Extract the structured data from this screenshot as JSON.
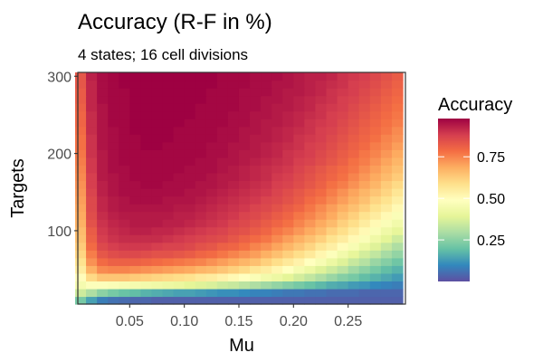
{
  "chart_data": {
    "type": "heatmap",
    "title": "Accuracy (R-F in %)",
    "subtitle": "4 states; 16 cell divisions",
    "xlabel": "Mu",
    "ylabel": "Targets",
    "x_ticks": [
      0.05,
      0.1,
      0.15,
      0.2,
      0.25
    ],
    "x_tick_labels": [
      "0.05",
      "0.10",
      "0.15",
      "0.20",
      "0.25"
    ],
    "y_ticks": [
      100,
      200,
      300
    ],
    "y_tick_labels": [
      "100",
      "200",
      "300"
    ],
    "xlim": [
      0.0025,
      0.3025
    ],
    "ylim": [
      5,
      305
    ],
    "grid": false,
    "legend": {
      "title": "Accuracy",
      "placement": "right",
      "range": [
        0.0,
        0.98
      ],
      "ticks": [
        0.25,
        0.5,
        0.75
      ],
      "tick_labels": [
        "0.25",
        "0.50",
        "0.75"
      ]
    },
    "colormap": [
      "#5e4fa2",
      "#3288bd",
      "#66c2a5",
      "#abdda4",
      "#e6f598",
      "#ffffbf",
      "#fee08b",
      "#fdae61",
      "#f46d43",
      "#d53e4f",
      "#9e0142"
    ],
    "x": [
      0.005,
      0.015,
      0.025,
      0.035,
      0.045,
      0.055,
      0.065,
      0.075,
      0.085,
      0.095,
      0.105,
      0.115,
      0.125,
      0.135,
      0.145,
      0.155,
      0.165,
      0.175,
      0.185,
      0.195,
      0.205,
      0.215,
      0.225,
      0.235,
      0.245,
      0.255,
      0.265,
      0.275,
      0.285,
      0.295
    ],
    "y": [
      10,
      20,
      30,
      40,
      50,
      60,
      70,
      80,
      90,
      100,
      110,
      120,
      130,
      140,
      150,
      160,
      170,
      180,
      190,
      200,
      210,
      220,
      230,
      240,
      250,
      260,
      270,
      280,
      290,
      300
    ],
    "values": [
      [
        0.22,
        0.14,
        0.08,
        0.06,
        0.05,
        0.04,
        0.04,
        0.03,
        0.03,
        0.03,
        0.03,
        0.03,
        0.03,
        0.03,
        0.03,
        0.03,
        0.03,
        0.03,
        0.03,
        0.03,
        0.03,
        0.03,
        0.03,
        0.03,
        0.03,
        0.03,
        0.03,
        0.03,
        0.03,
        0.03
      ],
      [
        0.35,
        0.3,
        0.25,
        0.22,
        0.2,
        0.19,
        0.17,
        0.16,
        0.15,
        0.14,
        0.14,
        0.13,
        0.12,
        0.11,
        0.11,
        0.1,
        0.09,
        0.09,
        0.08,
        0.07,
        0.07,
        0.06,
        0.06,
        0.05,
        0.05,
        0.05,
        0.04,
        0.04,
        0.04,
        0.04
      ],
      [
        0.45,
        0.48,
        0.48,
        0.47,
        0.46,
        0.45,
        0.44,
        0.43,
        0.42,
        0.41,
        0.39,
        0.38,
        0.37,
        0.35,
        0.34,
        0.32,
        0.3,
        0.28,
        0.26,
        0.24,
        0.22,
        0.2,
        0.18,
        0.16,
        0.15,
        0.13,
        0.12,
        0.1,
        0.09,
        0.08
      ],
      [
        0.5,
        0.6,
        0.64,
        0.64,
        0.64,
        0.63,
        0.62,
        0.61,
        0.6,
        0.59,
        0.58,
        0.56,
        0.55,
        0.53,
        0.51,
        0.49,
        0.47,
        0.44,
        0.42,
        0.39,
        0.36,
        0.33,
        0.3,
        0.27,
        0.24,
        0.22,
        0.19,
        0.17,
        0.15,
        0.13
      ],
      [
        0.55,
        0.68,
        0.74,
        0.75,
        0.75,
        0.74,
        0.73,
        0.72,
        0.71,
        0.7,
        0.69,
        0.67,
        0.66,
        0.64,
        0.62,
        0.6,
        0.57,
        0.55,
        0.52,
        0.49,
        0.45,
        0.42,
        0.38,
        0.35,
        0.32,
        0.28,
        0.25,
        0.22,
        0.19,
        0.17
      ],
      [
        0.58,
        0.73,
        0.79,
        0.81,
        0.81,
        0.81,
        0.8,
        0.79,
        0.78,
        0.77,
        0.76,
        0.75,
        0.73,
        0.71,
        0.69,
        0.67,
        0.65,
        0.62,
        0.59,
        0.56,
        0.53,
        0.49,
        0.46,
        0.42,
        0.38,
        0.34,
        0.31,
        0.27,
        0.24,
        0.21
      ],
      [
        0.61,
        0.76,
        0.83,
        0.85,
        0.86,
        0.86,
        0.85,
        0.84,
        0.84,
        0.83,
        0.82,
        0.8,
        0.79,
        0.77,
        0.75,
        0.73,
        0.71,
        0.68,
        0.65,
        0.62,
        0.59,
        0.56,
        0.52,
        0.48,
        0.44,
        0.4,
        0.36,
        0.33,
        0.29,
        0.26
      ],
      [
        0.63,
        0.79,
        0.86,
        0.88,
        0.89,
        0.89,
        0.89,
        0.88,
        0.87,
        0.87,
        0.86,
        0.84,
        0.83,
        0.81,
        0.8,
        0.78,
        0.75,
        0.73,
        0.7,
        0.67,
        0.64,
        0.61,
        0.57,
        0.54,
        0.5,
        0.46,
        0.42,
        0.38,
        0.34,
        0.3
      ],
      [
        0.65,
        0.81,
        0.88,
        0.9,
        0.91,
        0.91,
        0.91,
        0.91,
        0.9,
        0.89,
        0.88,
        0.87,
        0.86,
        0.85,
        0.83,
        0.81,
        0.79,
        0.77,
        0.74,
        0.71,
        0.68,
        0.65,
        0.62,
        0.58,
        0.55,
        0.51,
        0.47,
        0.43,
        0.39,
        0.35
      ],
      [
        0.66,
        0.82,
        0.89,
        0.91,
        0.92,
        0.93,
        0.93,
        0.92,
        0.92,
        0.91,
        0.9,
        0.89,
        0.88,
        0.87,
        0.85,
        0.84,
        0.82,
        0.8,
        0.77,
        0.75,
        0.72,
        0.69,
        0.66,
        0.62,
        0.59,
        0.55,
        0.51,
        0.47,
        0.43,
        0.4
      ],
      [
        0.68,
        0.84,
        0.9,
        0.92,
        0.93,
        0.94,
        0.94,
        0.94,
        0.93,
        0.93,
        0.92,
        0.91,
        0.9,
        0.89,
        0.87,
        0.86,
        0.84,
        0.82,
        0.8,
        0.78,
        0.75,
        0.72,
        0.69,
        0.66,
        0.62,
        0.59,
        0.55,
        0.51,
        0.47,
        0.44
      ],
      [
        0.69,
        0.85,
        0.91,
        0.93,
        0.94,
        0.94,
        0.94,
        0.94,
        0.94,
        0.93,
        0.93,
        0.92,
        0.91,
        0.9,
        0.89,
        0.87,
        0.86,
        0.84,
        0.82,
        0.8,
        0.77,
        0.75,
        0.72,
        0.69,
        0.65,
        0.62,
        0.58,
        0.55,
        0.51,
        0.47
      ],
      [
        0.7,
        0.86,
        0.92,
        0.94,
        0.95,
        0.95,
        0.95,
        0.95,
        0.95,
        0.94,
        0.94,
        0.93,
        0.92,
        0.91,
        0.9,
        0.89,
        0.87,
        0.86,
        0.84,
        0.82,
        0.8,
        0.77,
        0.74,
        0.71,
        0.68,
        0.65,
        0.62,
        0.58,
        0.55,
        0.51
      ],
      [
        0.71,
        0.86,
        0.92,
        0.94,
        0.95,
        0.96,
        0.96,
        0.96,
        0.95,
        0.95,
        0.95,
        0.94,
        0.93,
        0.92,
        0.91,
        0.9,
        0.89,
        0.87,
        0.86,
        0.84,
        0.82,
        0.79,
        0.77,
        0.74,
        0.71,
        0.68,
        0.65,
        0.61,
        0.58,
        0.54
      ],
      [
        0.72,
        0.87,
        0.93,
        0.95,
        0.96,
        0.96,
        0.96,
        0.96,
        0.96,
        0.96,
        0.95,
        0.95,
        0.94,
        0.93,
        0.92,
        0.91,
        0.9,
        0.89,
        0.87,
        0.85,
        0.83,
        0.81,
        0.79,
        0.76,
        0.73,
        0.7,
        0.67,
        0.64,
        0.61,
        0.57
      ],
      [
        0.73,
        0.88,
        0.93,
        0.95,
        0.96,
        0.96,
        0.97,
        0.97,
        0.96,
        0.96,
        0.96,
        0.95,
        0.95,
        0.94,
        0.93,
        0.92,
        0.91,
        0.9,
        0.88,
        0.87,
        0.85,
        0.83,
        0.81,
        0.78,
        0.76,
        0.73,
        0.7,
        0.67,
        0.63,
        0.6
      ],
      [
        0.74,
        0.88,
        0.94,
        0.95,
        0.96,
        0.97,
        0.97,
        0.97,
        0.97,
        0.96,
        0.96,
        0.96,
        0.95,
        0.94,
        0.94,
        0.93,
        0.92,
        0.91,
        0.89,
        0.88,
        0.86,
        0.84,
        0.82,
        0.8,
        0.78,
        0.75,
        0.72,
        0.69,
        0.66,
        0.63
      ],
      [
        0.75,
        0.89,
        0.94,
        0.96,
        0.96,
        0.97,
        0.97,
        0.97,
        0.97,
        0.97,
        0.96,
        0.96,
        0.96,
        0.95,
        0.94,
        0.93,
        0.92,
        0.91,
        0.9,
        0.89,
        0.87,
        0.85,
        0.83,
        0.81,
        0.79,
        0.77,
        0.74,
        0.71,
        0.68,
        0.65
      ],
      [
        0.76,
        0.89,
        0.94,
        0.96,
        0.97,
        0.97,
        0.97,
        0.97,
        0.97,
        0.97,
        0.97,
        0.96,
        0.96,
        0.95,
        0.95,
        0.94,
        0.93,
        0.92,
        0.91,
        0.9,
        0.88,
        0.87,
        0.85,
        0.83,
        0.81,
        0.78,
        0.76,
        0.73,
        0.7,
        0.67
      ],
      [
        0.77,
        0.9,
        0.94,
        0.96,
        0.97,
        0.97,
        0.97,
        0.97,
        0.97,
        0.97,
        0.97,
        0.97,
        0.96,
        0.96,
        0.95,
        0.94,
        0.94,
        0.93,
        0.92,
        0.9,
        0.89,
        0.88,
        0.86,
        0.84,
        0.82,
        0.8,
        0.77,
        0.75,
        0.72,
        0.69
      ],
      [
        0.78,
        0.9,
        0.95,
        0.96,
        0.97,
        0.97,
        0.98,
        0.98,
        0.97,
        0.97,
        0.97,
        0.97,
        0.96,
        0.96,
        0.95,
        0.95,
        0.94,
        0.93,
        0.92,
        0.91,
        0.9,
        0.88,
        0.87,
        0.85,
        0.83,
        0.81,
        0.79,
        0.76,
        0.74,
        0.71
      ],
      [
        0.78,
        0.9,
        0.95,
        0.96,
        0.97,
        0.97,
        0.98,
        0.98,
        0.98,
        0.97,
        0.97,
        0.97,
        0.97,
        0.96,
        0.96,
        0.95,
        0.94,
        0.94,
        0.93,
        0.92,
        0.9,
        0.89,
        0.88,
        0.86,
        0.84,
        0.82,
        0.8,
        0.78,
        0.75,
        0.73
      ],
      [
        0.79,
        0.91,
        0.95,
        0.96,
        0.97,
        0.98,
        0.98,
        0.98,
        0.98,
        0.97,
        0.97,
        0.97,
        0.97,
        0.96,
        0.96,
        0.95,
        0.95,
        0.94,
        0.93,
        0.92,
        0.91,
        0.9,
        0.88,
        0.87,
        0.85,
        0.83,
        0.81,
        0.79,
        0.77,
        0.74
      ],
      [
        0.8,
        0.91,
        0.95,
        0.97,
        0.97,
        0.98,
        0.98,
        0.98,
        0.98,
        0.98,
        0.97,
        0.97,
        0.97,
        0.97,
        0.96,
        0.96,
        0.95,
        0.94,
        0.94,
        0.93,
        0.92,
        0.9,
        0.89,
        0.88,
        0.86,
        0.84,
        0.82,
        0.8,
        0.78,
        0.76
      ],
      [
        0.8,
        0.91,
        0.95,
        0.97,
        0.97,
        0.98,
        0.98,
        0.98,
        0.98,
        0.98,
        0.98,
        0.97,
        0.97,
        0.97,
        0.96,
        0.96,
        0.95,
        0.95,
        0.94,
        0.93,
        0.92,
        0.91,
        0.9,
        0.88,
        0.87,
        0.85,
        0.83,
        0.81,
        0.79,
        0.77
      ],
      [
        0.81,
        0.92,
        0.95,
        0.97,
        0.97,
        0.98,
        0.98,
        0.98,
        0.98,
        0.98,
        0.98,
        0.97,
        0.97,
        0.97,
        0.97,
        0.96,
        0.96,
        0.95,
        0.94,
        0.94,
        0.93,
        0.92,
        0.9,
        0.89,
        0.88,
        0.86,
        0.84,
        0.82,
        0.8,
        0.78
      ],
      [
        0.82,
        0.92,
        0.96,
        0.97,
        0.97,
        0.98,
        0.98,
        0.98,
        0.98,
        0.98,
        0.98,
        0.98,
        0.97,
        0.97,
        0.97,
        0.96,
        0.96,
        0.95,
        0.95,
        0.94,
        0.93,
        0.92,
        0.91,
        0.9,
        0.88,
        0.87,
        0.85,
        0.83,
        0.81,
        0.79
      ],
      [
        0.82,
        0.92,
        0.96,
        0.97,
        0.97,
        0.98,
        0.98,
        0.98,
        0.98,
        0.98,
        0.98,
        0.98,
        0.97,
        0.97,
        0.97,
        0.96,
        0.96,
        0.96,
        0.95,
        0.94,
        0.94,
        0.93,
        0.92,
        0.9,
        0.89,
        0.88,
        0.86,
        0.84,
        0.82,
        0.8
      ],
      [
        0.83,
        0.92,
        0.96,
        0.97,
        0.98,
        0.98,
        0.98,
        0.98,
        0.98,
        0.98,
        0.98,
        0.98,
        0.98,
        0.97,
        0.97,
        0.97,
        0.96,
        0.96,
        0.95,
        0.95,
        0.94,
        0.93,
        0.92,
        0.91,
        0.9,
        0.88,
        0.87,
        0.85,
        0.83,
        0.81
      ],
      [
        0.83,
        0.93,
        0.96,
        0.97,
        0.98,
        0.98,
        0.98,
        0.98,
        0.98,
        0.98,
        0.98,
        0.98,
        0.98,
        0.97,
        0.97,
        0.97,
        0.96,
        0.96,
        0.96,
        0.95,
        0.94,
        0.93,
        0.93,
        0.92,
        0.9,
        0.89,
        0.88,
        0.86,
        0.84,
        0.82
      ]
    ]
  }
}
